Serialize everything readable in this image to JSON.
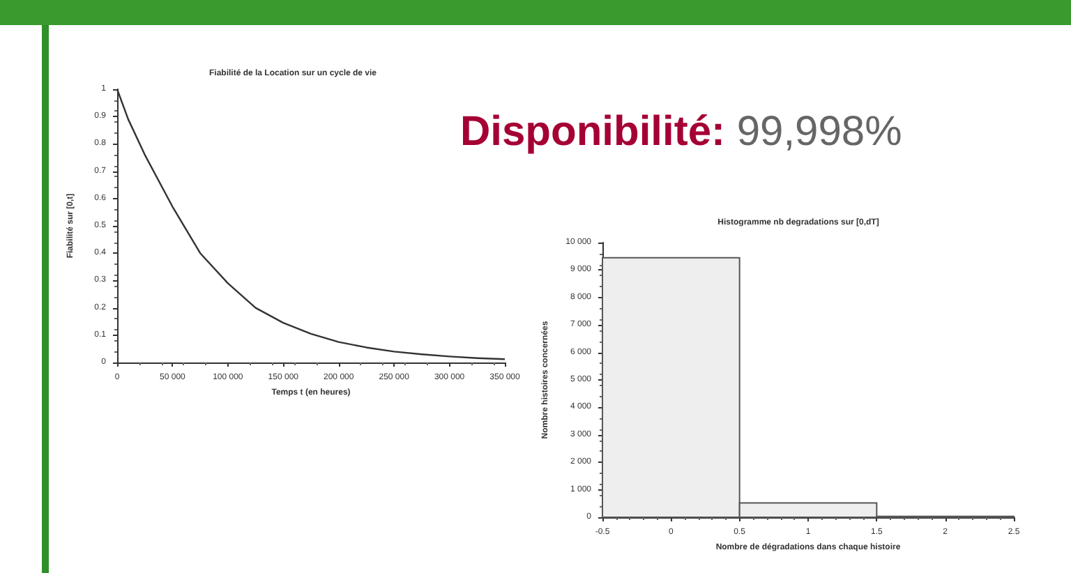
{
  "chart_data": [
    {
      "type": "line",
      "title": "Fiabilité de la Location sur un cycle de vie",
      "xlabel": "Temps t (en heures)",
      "ylabel": "Fiabilité sur [0,t]",
      "marker": "none",
      "x": [
        0,
        10000,
        25000,
        50000,
        75000,
        100000,
        125000,
        150000,
        175000,
        200000,
        225000,
        250000,
        275000,
        300000,
        325000,
        350000
      ],
      "series": [
        {
          "color": "#333333",
          "values": [
            1,
            0.89,
            0.76,
            0.57,
            0.4,
            0.29,
            0.2,
            0.145,
            0.105,
            0.075,
            0.055,
            0.04,
            0.03,
            0.022,
            0.016,
            0.012
          ]
        }
      ],
      "xlim": [
        0,
        350000
      ],
      "xticks": [
        0,
        {
          "value": 50000,
          "label": "50 000"
        },
        {
          "value": 100000,
          "label": "100 000"
        },
        {
          "value": 150000,
          "label": "150 000"
        },
        {
          "value": 200000,
          "label": "200 000"
        },
        {
          "value": 250000,
          "label": "250 000"
        },
        {
          "value": 300000,
          "label": "300 000"
        },
        {
          "value": 350000,
          "label": "350 000"
        }
      ],
      "ylim": [
        0,
        1
      ],
      "yticks": [
        0,
        0.1,
        0.2,
        0.3,
        0.4,
        0.5,
        0.6,
        0.7,
        0.8,
        0.9,
        1
      ]
    },
    {
      "type": "other",
      "title": "Disponibilité:",
      "annotations": [
        "99,998%"
      ]
    },
    {
      "type": "histogram",
      "title": "Histogramme nb degradations sur [0,dT]",
      "xlabel": "Nombre de dégradations dans chaque histoire",
      "ylabel": "Nombre histoires concernées",
      "color": "#eeeeee",
      "bins": [
        -0.5,
        0.5,
        1.5,
        2.5
      ],
      "values": [
        9450,
        520,
        30
      ],
      "xlim": [
        -0.5,
        2.5
      ],
      "xticks": [
        -0.5,
        0,
        0.5,
        1,
        1.5,
        2,
        2.5
      ],
      "ylim": [
        0,
        10000
      ],
      "yticks": [
        0,
        {
          "value": 1000,
          "label": "1 000"
        },
        {
          "value": 2000,
          "label": "2 000"
        },
        {
          "value": 3000,
          "label": "3 000"
        },
        {
          "value": 4000,
          "label": "4 000"
        },
        {
          "value": 5000,
          "label": "5 000"
        },
        {
          "value": 6000,
          "label": "6 000"
        },
        {
          "value": 7000,
          "label": "7 000"
        },
        {
          "value": 8000,
          "label": "8 000"
        },
        {
          "value": 9000,
          "label": "9 000"
        },
        {
          "value": 10000,
          "label": "10 000"
        }
      ]
    }
  ]
}
